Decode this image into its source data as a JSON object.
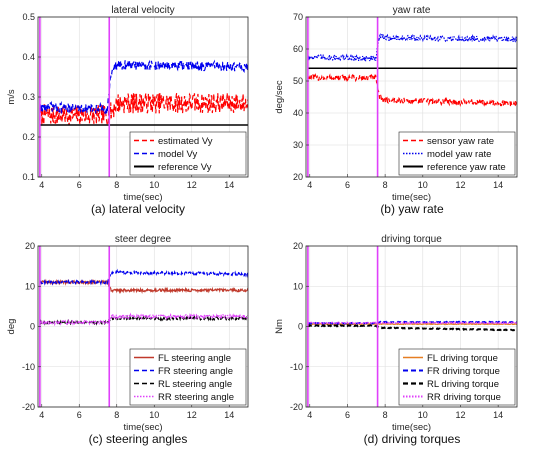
{
  "chart_data": [
    {
      "type": "line",
      "title": "lateral velocity",
      "xlabel": "time(sec)",
      "ylabel": "m/s",
      "caption": "(a) lateral velocity",
      "xlim": [
        3.8,
        15
      ],
      "ylim": [
        0.1,
        0.5
      ],
      "xticks": [
        4,
        6,
        8,
        10,
        12,
        14
      ],
      "yticks": [
        0.1,
        0.2,
        0.3,
        0.4,
        0.5
      ],
      "ytick_labels": [
        "0.1",
        "0.2",
        "0.3",
        "0.4",
        "0.5"
      ],
      "vlines": [
        3.9,
        7.6
      ],
      "vline_color": "#e040fb",
      "legend_position": "bottom-right",
      "series": [
        {
          "name": "estimated Vy",
          "color": "#ff0000",
          "dash": "5,3",
          "width": 1.2,
          "noise": 0.026,
          "x": [
            3.9,
            7.5,
            7.6,
            8.0,
            15.0
          ],
          "y": [
            0.255,
            0.255,
            0.255,
            0.285,
            0.285
          ]
        },
        {
          "name": "model Vy",
          "color": "#0000ee",
          "dash": "5,3",
          "width": 1.2,
          "noise": 0.012,
          "x": [
            3.9,
            7.5,
            7.7,
            8.0,
            15.0
          ],
          "y": [
            0.275,
            0.27,
            0.36,
            0.38,
            0.375
          ]
        },
        {
          "name": "reference Vy",
          "color": "#000000",
          "dash": "",
          "width": 1.5,
          "noise": 0,
          "x": [
            3.9,
            15.0
          ],
          "y": [
            0.23,
            0.23
          ]
        }
      ]
    },
    {
      "type": "line",
      "title": "yaw rate",
      "xlabel": "time(sec)",
      "ylabel": "deg/sec",
      "caption": "(b) yaw rate",
      "xlim": [
        3.8,
        15
      ],
      "ylim": [
        20,
        70
      ],
      "xticks": [
        4,
        6,
        8,
        10,
        12,
        14
      ],
      "yticks": [
        20,
        30,
        40,
        50,
        60,
        70
      ],
      "ytick_labels": [
        "20",
        "30",
        "40",
        "50",
        "60",
        "70"
      ],
      "vlines": [
        3.9,
        7.6
      ],
      "vline_color": "#e040fb",
      "legend_position": "bottom-right",
      "series": [
        {
          "name": "sensor yaw rate",
          "color": "#ff0000",
          "dash": "5,3",
          "width": 1.2,
          "noise": 0.9,
          "x": [
            3.9,
            7.5,
            7.7,
            8.0,
            15.0
          ],
          "y": [
            51,
            51,
            45,
            44,
            43
          ]
        },
        {
          "name": "model yaw rate",
          "color": "#0000ee",
          "dash": "1.5,1.5",
          "width": 1.2,
          "noise": 0.9,
          "x": [
            3.9,
            7.5,
            7.7,
            8.0,
            15.0
          ],
          "y": [
            57.5,
            57,
            64,
            63.5,
            63
          ]
        },
        {
          "name": "reference yaw rate",
          "color": "#000000",
          "dash": "",
          "width": 1.5,
          "noise": 0,
          "x": [
            3.9,
            15.0
          ],
          "y": [
            54,
            54
          ]
        }
      ]
    },
    {
      "type": "line",
      "title": "steer degree",
      "xlabel": "time(sec)",
      "ylabel": "deg",
      "caption": "(c) steering angles",
      "xlim": [
        3.8,
        15
      ],
      "ylim": [
        -20,
        20
      ],
      "xticks": [
        4,
        6,
        8,
        10,
        12,
        14
      ],
      "yticks": [
        -20,
        -10,
        0,
        10,
        20
      ],
      "ytick_labels": [
        "-20",
        "-10",
        "0",
        "10",
        "20"
      ],
      "vlines": [
        3.9,
        7.6
      ],
      "vline_color": "#e040fb",
      "legend_position": "bottom-right",
      "series": [
        {
          "name": "FL steering angle",
          "color": "#c0392b",
          "dash": "",
          "width": 1.2,
          "noise": 0.35,
          "x": [
            3.9,
            7.5,
            7.7,
            15.0
          ],
          "y": [
            11,
            11,
            9,
            9
          ]
        },
        {
          "name": "FR steering angle",
          "color": "#0000ee",
          "dash": "5,3",
          "width": 1.2,
          "noise": 0.35,
          "x": [
            3.9,
            7.5,
            7.7,
            15.0
          ],
          "y": [
            11,
            11,
            13.5,
            13
          ]
        },
        {
          "name": "RL steering angle",
          "color": "#000000",
          "dash": "5,3",
          "width": 1.2,
          "noise": 0.35,
          "x": [
            3.9,
            7.5,
            7.7,
            15.0
          ],
          "y": [
            1,
            1,
            2,
            2
          ]
        },
        {
          "name": "RR steering angle",
          "color": "#e040fb",
          "dash": "1.5,1.5",
          "width": 1.2,
          "noise": 0.45,
          "x": [
            3.9,
            7.5,
            7.7,
            15.0
          ],
          "y": [
            1,
            1,
            2.5,
            2.5
          ]
        }
      ]
    },
    {
      "type": "line",
      "title": "driving torque",
      "xlabel": "time(sec)",
      "ylabel": "Nm",
      "caption": "(d) driving torques",
      "xlim": [
        3.8,
        15
      ],
      "ylim": [
        -20,
        20
      ],
      "xticks": [
        4,
        6,
        8,
        10,
        12,
        14
      ],
      "yticks": [
        -20,
        -10,
        0,
        10,
        20
      ],
      "ytick_labels": [
        "-20",
        "-10",
        "0",
        "10",
        "20"
      ],
      "vlines": [
        3.9,
        7.6
      ],
      "vline_color": "#e040fb",
      "legend_position": "bottom-right",
      "series": [
        {
          "name": "FL driving torque",
          "color": "#e67e22",
          "dash": "",
          "width": 1.2,
          "noise": 0.1,
          "x": [
            3.9,
            15.0
          ],
          "y": [
            0.6,
            0.6
          ]
        },
        {
          "name": "FR driving torque",
          "color": "#0000ee",
          "dash": "5,3",
          "width": 1.6,
          "noise": 0.1,
          "x": [
            3.9,
            7.5,
            7.7,
            15.0
          ],
          "y": [
            0.8,
            0.8,
            1.1,
            1.1
          ]
        },
        {
          "name": "RL driving torque",
          "color": "#000000",
          "dash": "5,3",
          "width": 1.8,
          "noise": 0.1,
          "x": [
            3.9,
            7.5,
            7.7,
            15.0
          ],
          "y": [
            0.2,
            0.2,
            -0.3,
            -0.9
          ]
        },
        {
          "name": "RR driving torque",
          "color": "#e040fb",
          "dash": "1.5,1.5",
          "width": 1.6,
          "noise": 0.1,
          "x": [
            3.9,
            15.0
          ],
          "y": [
            0.9,
            0.9
          ]
        }
      ]
    }
  ]
}
